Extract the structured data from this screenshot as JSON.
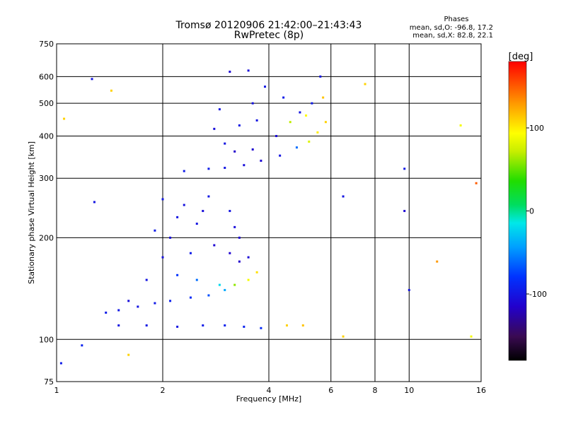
{
  "chart_data": {
    "type": "scatter",
    "title": "Tromsø 20120906 21:42:00–21:43:43",
    "subtitle": "RwPretec (8p)",
    "xlabel": "Frequency [MHz]",
    "ylabel": "Stationary phase Virtual Height [km]",
    "x_scale": "log",
    "y_scale": "log",
    "xlim": [
      1,
      16
    ],
    "ylim": [
      75,
      750
    ],
    "x_ticks": [
      1,
      2,
      4,
      6,
      8,
      10,
      16
    ],
    "y_ticks": [
      75,
      100,
      200,
      300,
      400,
      500,
      600,
      750
    ],
    "grid": true,
    "stats": {
      "heading": "Phases",
      "line_o": "mean, sd,O: -96.8, 17.2",
      "line_x": "mean, sd,X: 82.8, 22.1"
    },
    "colorbar": {
      "label": "[deg]",
      "range": [
        -180,
        180
      ],
      "ticks": [
        100,
        0,
        -100
      ],
      "colormap": "rainbow"
    },
    "series": [
      {
        "points": [
          [
            1.38,
            120,
            -95
          ],
          [
            1.5,
            122,
            -98
          ],
          [
            1.7,
            125,
            -100
          ],
          [
            1.9,
            128,
            -97
          ],
          [
            2.1,
            130,
            -92
          ],
          [
            2.4,
            133,
            -85
          ],
          [
            2.7,
            135,
            -70
          ],
          [
            3.0,
            140,
            -40
          ],
          [
            3.2,
            145,
            60
          ],
          [
            3.5,
            150,
            90
          ],
          [
            3.7,
            158,
            105
          ],
          [
            1.6,
            130,
            -105
          ],
          [
            1.8,
            150,
            -100
          ],
          [
            2.0,
            175,
            -103
          ],
          [
            2.1,
            200,
            -105
          ],
          [
            2.2,
            230,
            -100
          ],
          [
            2.0,
            260,
            -98
          ],
          [
            2.3,
            250,
            -102
          ],
          [
            2.5,
            220,
            -100
          ],
          [
            2.6,
            240,
            -105
          ],
          [
            2.7,
            265,
            -98
          ],
          [
            1.9,
            210,
            -96
          ],
          [
            2.4,
            180,
            -95
          ],
          [
            2.8,
            190,
            -110
          ],
          [
            3.1,
            180,
            -112
          ],
          [
            3.3,
            170,
            -115
          ],
          [
            3.5,
            175,
            -108
          ],
          [
            2.2,
            155,
            -80
          ],
          [
            2.5,
            150,
            -60
          ],
          [
            2.9,
            145,
            -20
          ],
          [
            1.5,
            110,
            -100
          ],
          [
            1.8,
            110,
            -98
          ],
          [
            2.2,
            109,
            -100
          ],
          [
            2.6,
            110,
            -96
          ],
          [
            3.0,
            110,
            -92
          ],
          [
            3.4,
            109,
            -90
          ],
          [
            3.8,
            108,
            -85
          ],
          [
            4.5,
            110,
            110
          ],
          [
            5.0,
            110,
            115
          ],
          [
            3.1,
            240,
            -100
          ],
          [
            3.2,
            215,
            -105
          ],
          [
            3.3,
            200,
            -110
          ],
          [
            2.7,
            320,
            -95
          ],
          [
            3.0,
            322,
            -100
          ],
          [
            3.4,
            328,
            -105
          ],
          [
            3.8,
            338,
            -110
          ],
          [
            4.3,
            350,
            -100
          ],
          [
            4.8,
            370,
            -60
          ],
          [
            5.2,
            385,
            80
          ],
          [
            5.5,
            410,
            100
          ],
          [
            5.8,
            440,
            110
          ],
          [
            3.0,
            380,
            -100
          ],
          [
            3.3,
            430,
            -98
          ],
          [
            3.6,
            500,
            -102
          ],
          [
            3.9,
            560,
            -98
          ],
          [
            4.4,
            520,
            -95
          ],
          [
            4.9,
            470,
            -100
          ],
          [
            5.3,
            500,
            -96
          ],
          [
            5.6,
            600,
            -100
          ],
          [
            3.1,
            620,
            -110
          ],
          [
            3.5,
            625,
            -105
          ],
          [
            3.2,
            360,
            -115
          ],
          [
            3.6,
            365,
            -112
          ],
          [
            4.2,
            400,
            -108
          ],
          [
            4.6,
            440,
            70
          ],
          [
            5.1,
            460,
            95
          ],
          [
            5.7,
            520,
            115
          ],
          [
            2.9,
            480,
            -100
          ],
          [
            2.8,
            420,
            -105
          ],
          [
            3.7,
            445,
            -100
          ],
          [
            1.03,
            85,
            -95
          ],
          [
            1.18,
            96,
            -90
          ],
          [
            1.26,
            590,
            -100
          ],
          [
            1.28,
            255,
            -100
          ],
          [
            1.43,
            545,
            110
          ],
          [
            1.6,
            90,
            110
          ],
          [
            2.3,
            315,
            -95
          ],
          [
            6.5,
            265,
            -100
          ],
          [
            7.5,
            570,
            110
          ],
          [
            9.7,
            240,
            -110
          ],
          [
            9.7,
            320,
            -98
          ],
          [
            10,
            140,
            -100
          ],
          [
            12,
            170,
            130
          ],
          [
            14,
            430,
            90
          ],
          [
            15.5,
            290,
            150
          ],
          [
            15,
            102,
            90
          ],
          [
            6.5,
            102,
            110
          ],
          [
            1.05,
            450,
            110
          ]
        ]
      }
    ]
  }
}
